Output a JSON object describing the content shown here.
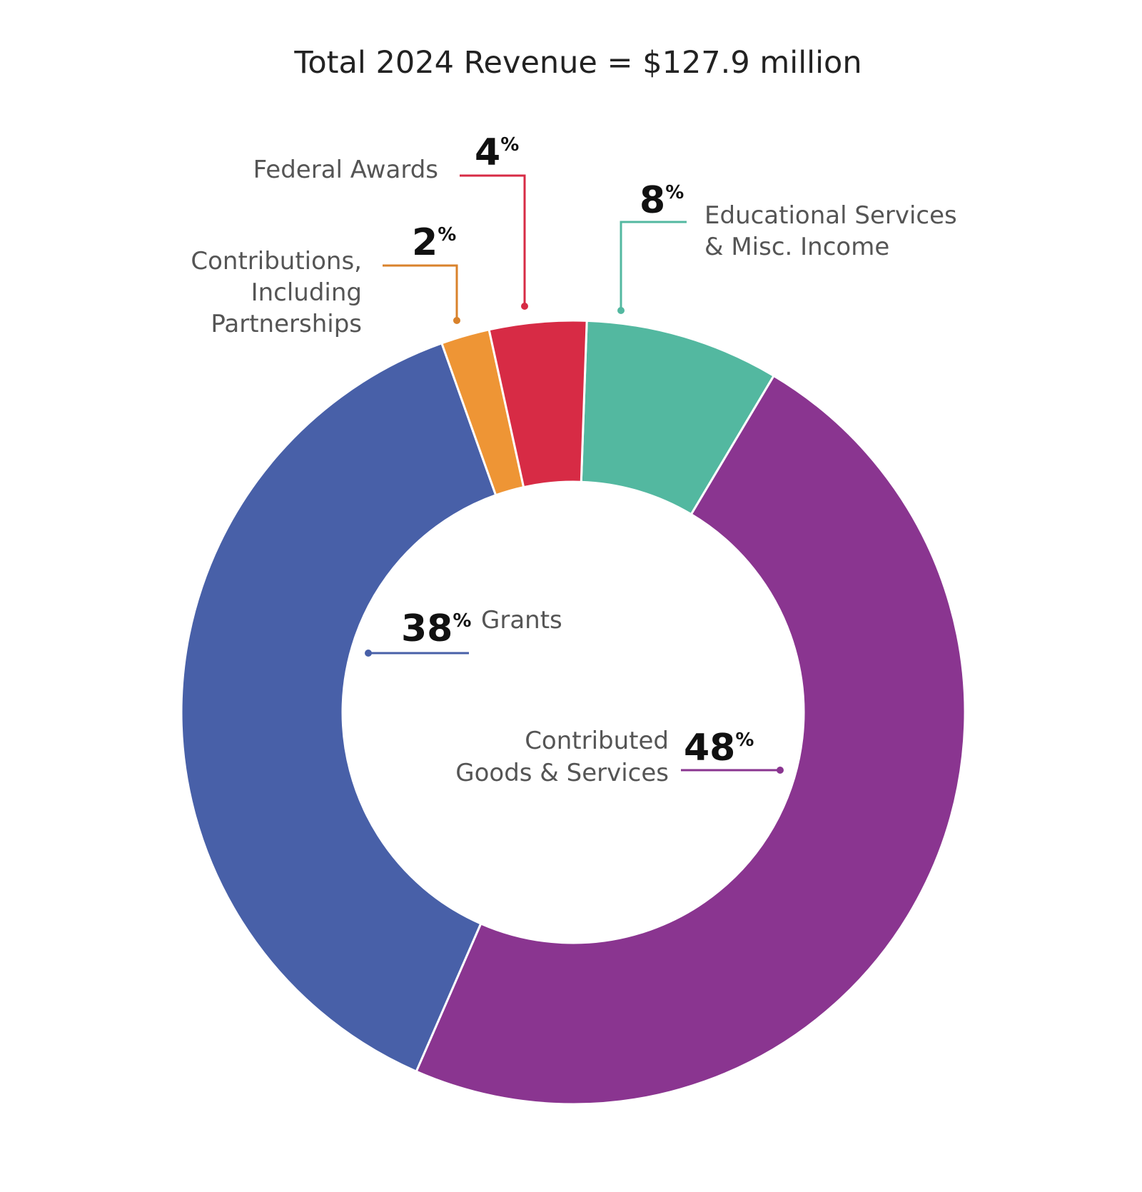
{
  "chart_data": {
    "type": "pie",
    "donut": true,
    "title": "Total 2024 Revenue = $127.9 million",
    "categories": [
      "Educational Services & Misc. Income",
      "Contributed Goods & Services",
      "Grants",
      "Contributions, Including Partnerships",
      "Federal Awards"
    ],
    "values": [
      8,
      48,
      38,
      2,
      4
    ],
    "unit": "%",
    "colors": [
      "#53B8A0",
      "#8A3590",
      "#4860A8",
      "#EE9535",
      "#D72B45"
    ]
  },
  "labels": {
    "educational": {
      "pct": "8",
      "line1": "Educational Services",
      "line2": "& Misc. Income"
    },
    "contributed": {
      "pct": "48",
      "line1": "Contributed",
      "line2": "Goods & Services"
    },
    "grants": {
      "pct": "38",
      "line1": "Grants"
    },
    "contributions": {
      "pct": "2",
      "line1": "Contributions,",
      "line2": "Including",
      "line3": "Partnerships"
    },
    "federal": {
      "pct": "4",
      "line1": "Federal Awards"
    },
    "percent_sign": "%"
  }
}
